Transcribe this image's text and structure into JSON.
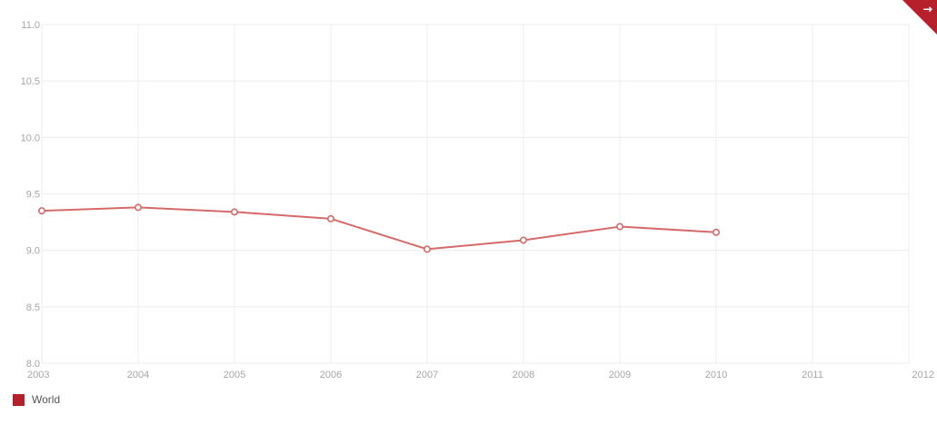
{
  "chart_data": {
    "type": "line",
    "x": [
      2003,
      2004,
      2005,
      2006,
      2007,
      2008,
      2009,
      2010
    ],
    "x_ticks": [
      "2003",
      "2004",
      "2005",
      "2006",
      "2007",
      "2008",
      "2009",
      "2010",
      "2011",
      "2012"
    ],
    "y_ticks": [
      "8.0",
      "8.5",
      "9.0",
      "9.5",
      "10.0",
      "10.5",
      "11.0"
    ],
    "xlim": [
      2003,
      2012
    ],
    "ylim": [
      8.0,
      11.0
    ],
    "grid": true,
    "legend_position": "bottom-left",
    "series": [
      {
        "name": "World",
        "color": "#b5202a",
        "line_color": "#d46a6a",
        "values": [
          9.35,
          9.38,
          9.34,
          9.28,
          9.01,
          9.09,
          9.21,
          9.16
        ]
      }
    ],
    "title": "",
    "xlabel": "",
    "ylabel": ""
  },
  "badge": {
    "icon": "external-link-icon",
    "color": "#b5202a"
  }
}
